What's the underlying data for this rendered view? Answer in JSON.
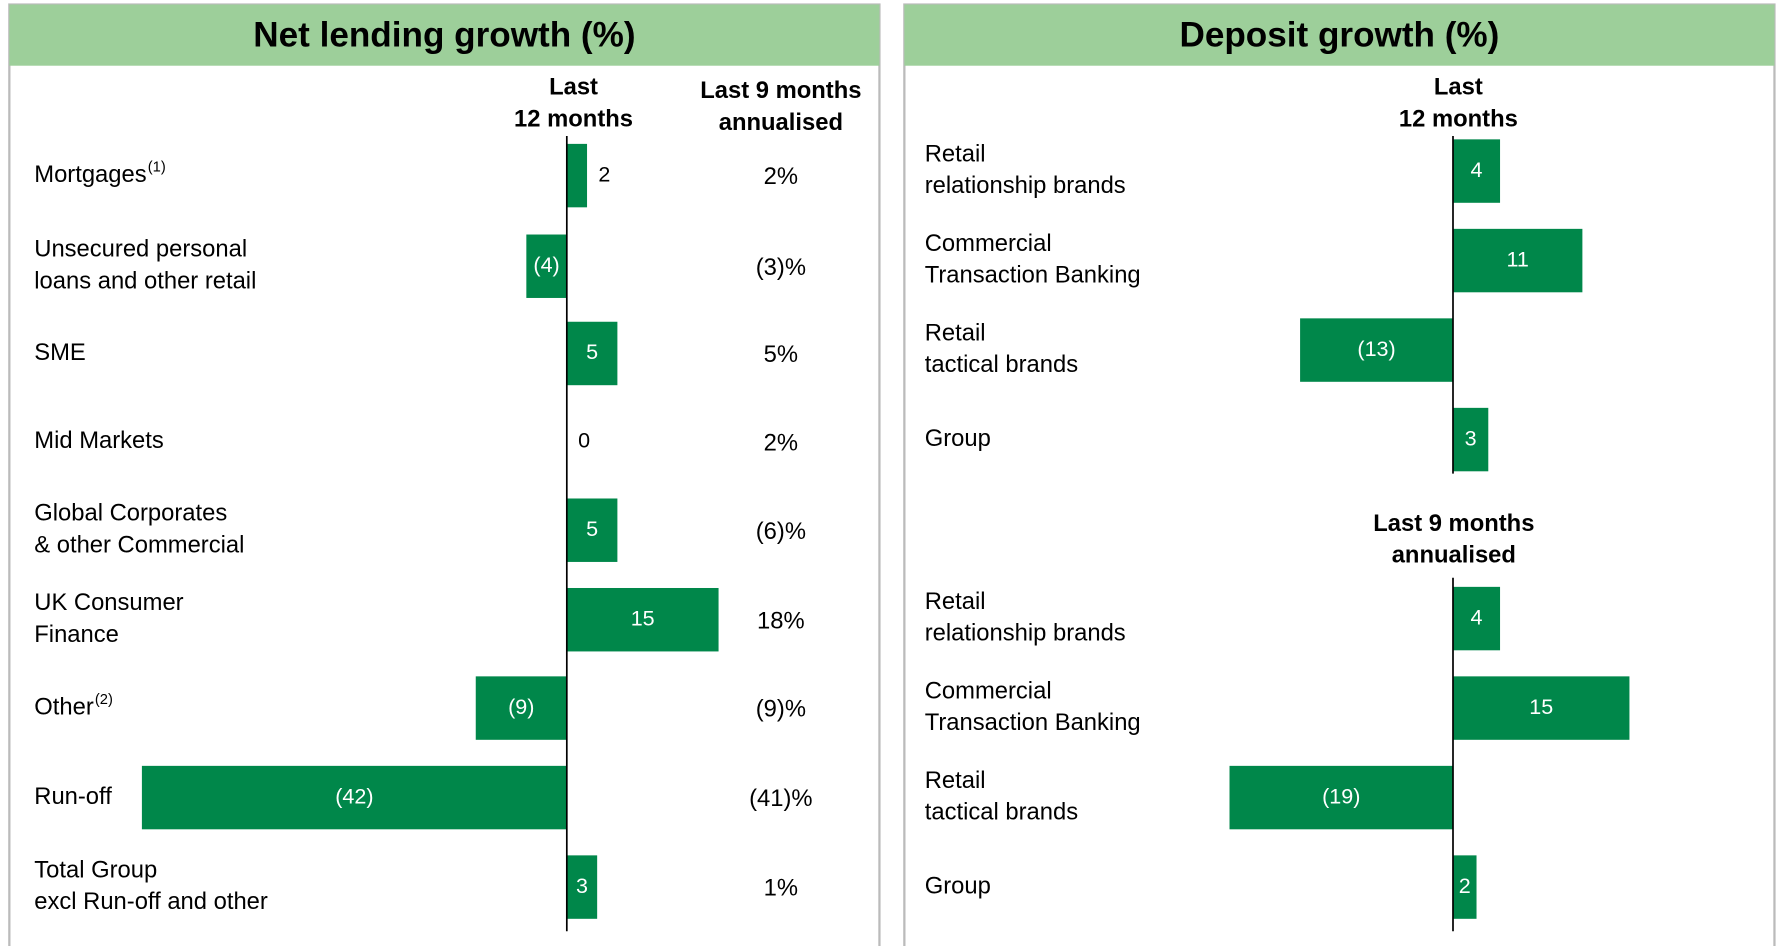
{
  "chart_data": [
    {
      "type": "bar",
      "orientation": "horizontal",
      "title": "Net lending growth (%)",
      "color": "#00874a",
      "header_color": "#9dcf9a",
      "categories": [
        [
          "Mortgages"
        ],
        [
          "Unsecured personal",
          "loans and other retail"
        ],
        [
          "SME"
        ],
        [
          "Mid Markets"
        ],
        [
          "Global Corporates",
          "& other Commercial"
        ],
        [
          "UK Consumer",
          "Finance"
        ],
        [
          "Other"
        ],
        [
          "Run-off"
        ],
        [
          "Total Group",
          "excl Run-off and other"
        ]
      ],
      "notes": {
        "0": "(1)",
        "6": "(2)"
      },
      "xlim": [
        -42,
        15
      ],
      "series": [
        {
          "name": [
            "Last",
            "12 months"
          ],
          "values": [
            2,
            -4,
            5,
            0,
            5,
            15,
            -9,
            -42,
            3
          ],
          "value_labels": [
            "2",
            "(4)",
            "5",
            "0",
            "5",
            "15",
            "(9)",
            "(42)",
            "3"
          ]
        },
        {
          "name": [
            "Last 9 months",
            "annualised"
          ],
          "values": [
            2,
            -3,
            5,
            2,
            -6,
            18,
            -9,
            -41,
            1
          ],
          "value_labels": [
            "2%",
            "(3)%",
            "5%",
            "2%",
            "(6)%",
            "18%",
            "(9)%",
            "(41)%",
            "1%"
          ]
        }
      ]
    },
    {
      "type": "bar",
      "orientation": "horizontal",
      "title": "Deposit growth (%)",
      "color": "#00874a",
      "header_color": "#9dcf9a",
      "categories": [
        [
          "Retail",
          "relationship brands"
        ],
        [
          "Commercial",
          "Transaction Banking"
        ],
        [
          "Retail",
          "tactical brands"
        ],
        [
          "Group"
        ]
      ],
      "xlim": [
        -19,
        15
      ],
      "series": [
        {
          "name": [
            "Last",
            "12 months"
          ],
          "values": [
            4,
            11,
            -13,
            3
          ],
          "value_labels": [
            "4",
            "11",
            "(13)",
            "3"
          ]
        },
        {
          "name": [
            "Last 9 months",
            "annualised"
          ],
          "values": [
            4,
            15,
            -19,
            2
          ],
          "value_labels": [
            "4",
            "15",
            "(19)",
            "2"
          ]
        }
      ]
    }
  ]
}
